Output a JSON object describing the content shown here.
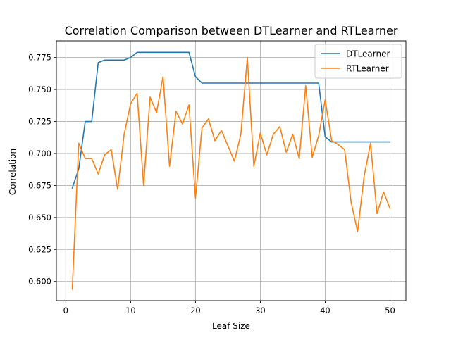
{
  "chart_data": {
    "type": "line",
    "title": "Correlation Comparison between DTLearner and RTLearner",
    "xlabel": "Leaf Size",
    "ylabel": "Correlation",
    "xlim": [
      -1.45,
      52.45
    ],
    "ylim": [
      0.585,
      0.788
    ],
    "xticks": [
      0,
      10,
      20,
      30,
      40,
      50
    ],
    "yticks": [
      0.6,
      0.625,
      0.65,
      0.675,
      0.7,
      0.725,
      0.75,
      0.775
    ],
    "ytick_labels": [
      "0.600",
      "0.625",
      "0.650",
      "0.675",
      "0.700",
      "0.725",
      "0.750",
      "0.775"
    ],
    "grid": true,
    "legend_position": "upper right",
    "x": [
      1,
      2,
      3,
      4,
      5,
      6,
      7,
      8,
      9,
      10,
      11,
      12,
      13,
      14,
      15,
      16,
      17,
      18,
      19,
      20,
      21,
      22,
      23,
      24,
      25,
      26,
      27,
      28,
      29,
      30,
      31,
      32,
      33,
      34,
      35,
      36,
      37,
      38,
      39,
      40,
      41,
      42,
      43,
      44,
      45,
      46,
      47,
      48,
      49,
      50
    ],
    "series": [
      {
        "name": "DTLearner",
        "color": "#1f77b4",
        "values": [
          0.673,
          0.688,
          0.725,
          0.725,
          0.771,
          0.773,
          0.773,
          0.773,
          0.773,
          0.775,
          0.779,
          0.779,
          0.779,
          0.779,
          0.779,
          0.779,
          0.779,
          0.779,
          0.779,
          0.76,
          0.755,
          0.755,
          0.755,
          0.755,
          0.755,
          0.755,
          0.755,
          0.755,
          0.755,
          0.755,
          0.755,
          0.755,
          0.755,
          0.755,
          0.755,
          0.755,
          0.755,
          0.755,
          0.755,
          0.713,
          0.709,
          0.709,
          0.709,
          0.709,
          0.709,
          0.709,
          0.709,
          0.709,
          0.709,
          0.709
        ]
      },
      {
        "name": "RTLearner",
        "color": "#ff7f0e",
        "values": [
          0.594,
          0.708,
          0.696,
          0.696,
          0.684,
          0.699,
          0.703,
          0.672,
          0.715,
          0.739,
          0.747,
          0.675,
          0.744,
          0.732,
          0.76,
          0.69,
          0.733,
          0.723,
          0.738,
          0.665,
          0.72,
          0.727,
          0.71,
          0.718,
          0.706,
          0.694,
          0.715,
          0.775,
          0.69,
          0.716,
          0.699,
          0.715,
          0.721,
          0.701,
          0.715,
          0.696,
          0.753,
          0.697,
          0.714,
          0.742,
          0.71,
          0.707,
          0.703,
          0.662,
          0.639,
          0.682,
          0.708,
          0.653,
          0.67,
          0.657
        ]
      }
    ]
  }
}
